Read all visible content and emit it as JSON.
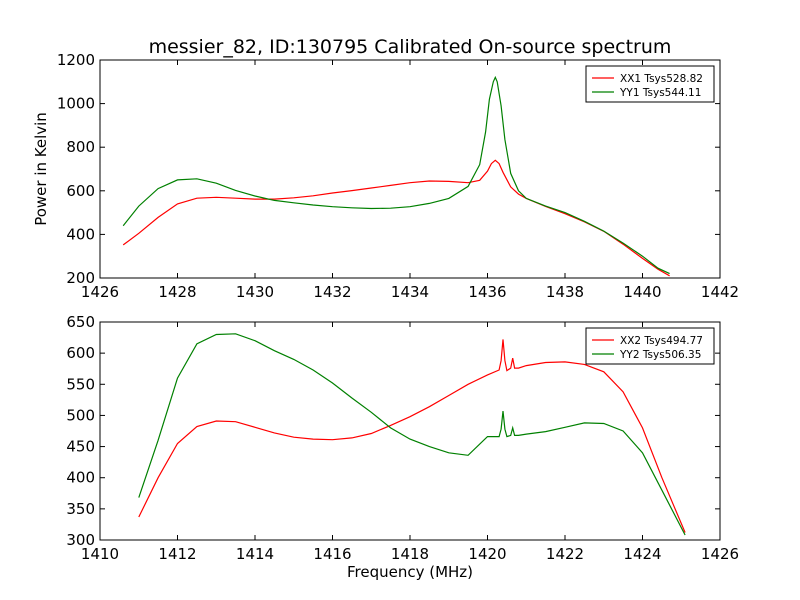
{
  "figure": {
    "title": "messier_82, ID:130795 Calibrated On-source spectrum",
    "ylabel": "Power in Kelvin",
    "xlabel": "Frequency (MHz)"
  },
  "chart_data": [
    {
      "type": "line",
      "xlim": [
        1426,
        1442
      ],
      "ylim": [
        200,
        1200
      ],
      "xticks": [
        1426,
        1428,
        1430,
        1432,
        1434,
        1436,
        1438,
        1440,
        1442
      ],
      "yticks": [
        200,
        400,
        600,
        800,
        1000,
        1200
      ],
      "legend_position": "top-right",
      "series": [
        {
          "name": "XX1 Tsys528.82",
          "color": "#ff0000",
          "x": [
            1426.6,
            1427.0,
            1427.5,
            1428.0,
            1428.5,
            1429.0,
            1429.5,
            1430.0,
            1430.5,
            1431.0,
            1431.5,
            1432.0,
            1432.5,
            1433.0,
            1433.5,
            1434.0,
            1434.5,
            1435.0,
            1435.5,
            1435.8,
            1436.0,
            1436.1,
            1436.2,
            1436.3,
            1436.4,
            1436.6,
            1436.8,
            1437.0,
            1437.5,
            1438.0,
            1438.5,
            1439.0,
            1439.5,
            1440.0,
            1440.4,
            1440.7
          ],
          "y": [
            352,
            405,
            478,
            540,
            566,
            570,
            566,
            562,
            562,
            568,
            577,
            590,
            601,
            613,
            625,
            637,
            645,
            643,
            637,
            648,
            690,
            725,
            740,
            725,
            685,
            618,
            585,
            565,
            528,
            495,
            458,
            414,
            355,
            290,
            240,
            210
          ]
        },
        {
          "name": "YY1 Tsys544.11",
          "color": "#008000",
          "x": [
            1426.6,
            1427.0,
            1427.5,
            1428.0,
            1428.5,
            1429.0,
            1429.5,
            1430.0,
            1430.5,
            1431.0,
            1431.5,
            1432.0,
            1432.5,
            1433.0,
            1433.5,
            1434.0,
            1434.5,
            1435.0,
            1435.5,
            1435.8,
            1435.95,
            1436.05,
            1436.15,
            1436.2,
            1436.25,
            1436.35,
            1436.45,
            1436.6,
            1436.8,
            1437.0,
            1437.5,
            1438.0,
            1438.5,
            1439.0,
            1439.5,
            1440.0,
            1440.4,
            1440.7
          ],
          "y": [
            440,
            530,
            610,
            650,
            655,
            635,
            602,
            576,
            556,
            545,
            535,
            527,
            522,
            519,
            520,
            527,
            542,
            565,
            620,
            720,
            870,
            1020,
            1100,
            1120,
            1100,
            990,
            835,
            680,
            600,
            565,
            530,
            500,
            460,
            415,
            360,
            300,
            245,
            220
          ]
        }
      ]
    },
    {
      "type": "line",
      "xlim": [
        1410,
        1426
      ],
      "ylim": [
        300,
        650
      ],
      "xticks": [
        1410,
        1412,
        1414,
        1416,
        1418,
        1420,
        1422,
        1424,
        1426
      ],
      "yticks": [
        300,
        350,
        400,
        450,
        500,
        550,
        600,
        650
      ],
      "legend_position": "top-right",
      "series": [
        {
          "name": "XX2 Tsys494.77",
          "color": "#ff0000",
          "x": [
            1411.0,
            1411.5,
            1412.0,
            1412.5,
            1413.0,
            1413.5,
            1414.0,
            1414.5,
            1415.0,
            1415.5,
            1416.0,
            1416.5,
            1417.0,
            1417.5,
            1418.0,
            1418.5,
            1419.0,
            1419.5,
            1420.0,
            1420.3,
            1420.35,
            1420.4,
            1420.45,
            1420.5,
            1420.6,
            1420.65,
            1420.7,
            1420.8,
            1421.0,
            1421.5,
            1422.0,
            1422.5,
            1423.0,
            1423.5,
            1424.0,
            1424.5,
            1425.1
          ],
          "y": [
            337,
            400,
            455,
            482,
            491,
            490,
            481,
            472,
            465,
            462,
            461,
            464,
            471,
            484,
            498,
            514,
            532,
            550,
            565,
            573,
            588,
            622,
            588,
            572,
            576,
            592,
            576,
            576,
            580,
            585,
            586,
            582,
            570,
            538,
            480,
            400,
            312
          ]
        },
        {
          "name": "YY2 Tsys506.35",
          "color": "#008000",
          "x": [
            1411.0,
            1411.5,
            1412.0,
            1412.5,
            1413.0,
            1413.5,
            1414.0,
            1414.5,
            1415.0,
            1415.5,
            1416.0,
            1416.5,
            1417.0,
            1417.5,
            1418.0,
            1418.5,
            1419.0,
            1419.5,
            1420.0,
            1420.3,
            1420.35,
            1420.4,
            1420.45,
            1420.5,
            1420.6,
            1420.65,
            1420.7,
            1420.8,
            1421.0,
            1421.5,
            1422.0,
            1422.5,
            1423.0,
            1423.5,
            1424.0,
            1424.5,
            1425.1
          ],
          "y": [
            368,
            460,
            560,
            615,
            630,
            631,
            620,
            604,
            590,
            573,
            552,
            528,
            505,
            480,
            462,
            450,
            440,
            436,
            466,
            466,
            478,
            507,
            478,
            466,
            468,
            480,
            468,
            468,
            470,
            474,
            481,
            488,
            487,
            475,
            440,
            380,
            308
          ]
        }
      ]
    }
  ]
}
